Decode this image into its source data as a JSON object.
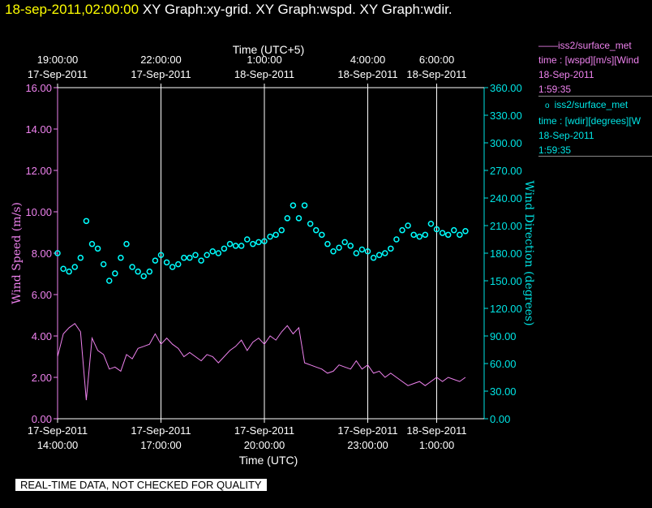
{
  "title": {
    "timestamp": "18-sep-2011,02:00:00",
    "graphs": "XY Graph:xy-grid.  XY Graph:wspd.  XY Graph:wdir."
  },
  "legend": [
    {
      "marker": "——",
      "name": "iss2/surface_met",
      "line2": "time : [wspd][m/s][Wind",
      "date": "18-Sep-2011",
      "time": "1:59:35"
    },
    {
      "marker": "o",
      "name": "iss2/surface_met",
      "line2": "time : [wdir][degrees][W",
      "date": "18-Sep-2011",
      "time": "1:59:35"
    }
  ],
  "qc_banner": "REAL-TIME DATA, NOT CHECKED FOR QUALITY",
  "colors": {
    "wspd": "#ee82ee",
    "wdir": "#00ffff",
    "grid": "#ffffff",
    "left_axis": "#ee82ee",
    "right_axis": "#00e5e5"
  },
  "chart_data": {
    "type": "scatter",
    "x_bottom": {
      "label": "Time (UTC)",
      "range": [
        "17-Sep-2011 14:00",
        "18-Sep-2011 01:53"
      ],
      "ticks": [
        {
          "time": "17-Sep-2011 14:00",
          "date": "17-Sep-2011",
          "clock": "14:00:00"
        },
        {
          "time": "17-Sep-2011 17:00",
          "date": "17-Sep-2011",
          "clock": "17:00:00"
        },
        {
          "time": "17-Sep-2011 20:00",
          "date": "17-Sep-2011",
          "clock": "20:00:00"
        },
        {
          "time": "17-Sep-2011 23:00",
          "date": "17-Sep-2011",
          "clock": "23:00:00"
        },
        {
          "time": "18-Sep-2011 01:00",
          "date": "18-Sep-2011",
          "clock": "1:00:00"
        }
      ]
    },
    "x_top": {
      "label": "Time (UTC+5)",
      "ticks": [
        {
          "time": "17-Sep-2011 14:00",
          "date": "17-Sep-2011",
          "clock": "19:00:00"
        },
        {
          "time": "17-Sep-2011 17:00",
          "date": "17-Sep-2011",
          "clock": "22:00:00"
        },
        {
          "time": "17-Sep-2011 20:00",
          "date": "18-Sep-2011",
          "clock": "1:00:00"
        },
        {
          "time": "17-Sep-2011 23:00",
          "date": "18-Sep-2011",
          "clock": "4:00:00"
        },
        {
          "time": "18-Sep-2011 01:00",
          "date": "18-Sep-2011",
          "clock": "6:00:00"
        }
      ]
    },
    "y_left": {
      "label": "Wind Speed (m/s)",
      "ylim": [
        0,
        16
      ],
      "ticks": [
        "0.00",
        "2.00",
        "4.00",
        "6.00",
        "8.00",
        "10.00",
        "12.00",
        "14.00",
        "16.00"
      ]
    },
    "y_right": {
      "label": "Wind Direction (degrees)",
      "ylim": [
        0,
        360
      ],
      "ticks": [
        "0.00",
        "30.00",
        "60.00",
        "90.00",
        "120.00",
        "150.00",
        "180.00",
        "210.00",
        "240.00",
        "270.00",
        "300.00",
        "330.00",
        "360.00"
      ]
    },
    "grid": "vertical lines at bottom ticks",
    "legend_position": "right",
    "series": [
      {
        "type": "line",
        "axis": "left",
        "x": [
          "17-Sep-2011 14:00",
          "17-Sep-2011 14:10",
          "17-Sep-2011 14:20",
          "17-Sep-2011 14:30",
          "17-Sep-2011 14:40",
          "17-Sep-2011 14:50",
          "17-Sep-2011 15:00",
          "17-Sep-2011 15:10",
          "17-Sep-2011 15:20",
          "17-Sep-2011 15:30",
          "17-Sep-2011 15:40",
          "17-Sep-2011 15:50",
          "17-Sep-2011 16:00",
          "17-Sep-2011 16:10",
          "17-Sep-2011 16:20",
          "17-Sep-2011 16:30",
          "17-Sep-2011 16:40",
          "17-Sep-2011 16:50",
          "17-Sep-2011 17:00",
          "17-Sep-2011 17:10",
          "17-Sep-2011 17:20",
          "17-Sep-2011 17:30",
          "17-Sep-2011 17:40",
          "17-Sep-2011 17:50",
          "17-Sep-2011 18:00",
          "17-Sep-2011 18:10",
          "17-Sep-2011 18:20",
          "17-Sep-2011 18:30",
          "17-Sep-2011 18:40",
          "17-Sep-2011 18:50",
          "17-Sep-2011 19:00",
          "17-Sep-2011 19:10",
          "17-Sep-2011 19:20",
          "17-Sep-2011 19:30",
          "17-Sep-2011 19:40",
          "17-Sep-2011 19:50",
          "17-Sep-2011 20:00",
          "17-Sep-2011 20:10",
          "17-Sep-2011 20:20",
          "17-Sep-2011 20:30",
          "17-Sep-2011 20:40",
          "17-Sep-2011 20:50",
          "17-Sep-2011 21:00",
          "17-Sep-2011 21:10",
          "17-Sep-2011 21:20",
          "17-Sep-2011 21:30",
          "17-Sep-2011 21:40",
          "17-Sep-2011 21:50",
          "17-Sep-2011 22:00",
          "17-Sep-2011 22:10",
          "17-Sep-2011 22:20",
          "17-Sep-2011 22:30",
          "17-Sep-2011 22:40",
          "17-Sep-2011 22:50",
          "17-Sep-2011 23:00",
          "17-Sep-2011 23:10",
          "17-Sep-2011 23:20",
          "17-Sep-2011 23:30",
          "17-Sep-2011 23:40",
          "17-Sep-2011 23:50",
          "18-Sep-2011 00:00",
          "18-Sep-2011 00:10",
          "18-Sep-2011 00:20",
          "18-Sep-2011 00:30",
          "18-Sep-2011 00:40",
          "18-Sep-2011 00:50",
          "18-Sep-2011 01:00",
          "18-Sep-2011 01:10",
          "18-Sep-2011 01:20",
          "18-Sep-2011 01:30",
          "18-Sep-2011 01:40",
          "18-Sep-2011 01:50"
        ],
        "values": [
          3.0,
          4.1,
          4.4,
          4.6,
          4.2,
          0.9,
          3.9,
          3.3,
          3.1,
          2.4,
          2.5,
          2.3,
          3.1,
          2.9,
          3.4,
          3.5,
          3.6,
          4.1,
          3.6,
          3.9,
          3.6,
          3.4,
          3.0,
          3.2,
          3.0,
          2.8,
          3.1,
          3.0,
          2.7,
          3.0,
          3.3,
          3.5,
          3.8,
          3.3,
          3.7,
          3.9,
          3.6,
          4.0,
          3.8,
          4.2,
          4.5,
          4.1,
          4.4,
          2.7,
          2.6,
          2.5,
          2.4,
          2.2,
          2.3,
          2.6,
          2.5,
          2.4,
          2.8,
          2.4,
          2.6,
          2.2,
          2.3,
          2.0,
          2.2,
          2.0,
          1.8,
          1.6,
          1.7,
          1.8,
          1.6,
          1.8,
          2.0,
          1.8,
          2.0,
          1.9,
          1.8,
          2.0
        ]
      },
      {
        "type": "scatter",
        "axis": "right",
        "x": [
          "17-Sep-2011 14:00",
          "17-Sep-2011 14:10",
          "17-Sep-2011 14:20",
          "17-Sep-2011 14:30",
          "17-Sep-2011 14:40",
          "17-Sep-2011 14:50",
          "17-Sep-2011 15:00",
          "17-Sep-2011 15:10",
          "17-Sep-2011 15:20",
          "17-Sep-2011 15:30",
          "17-Sep-2011 15:40",
          "17-Sep-2011 15:50",
          "17-Sep-2011 16:00",
          "17-Sep-2011 16:10",
          "17-Sep-2011 16:20",
          "17-Sep-2011 16:30",
          "17-Sep-2011 16:40",
          "17-Sep-2011 16:50",
          "17-Sep-2011 17:00",
          "17-Sep-2011 17:10",
          "17-Sep-2011 17:20",
          "17-Sep-2011 17:30",
          "17-Sep-2011 17:40",
          "17-Sep-2011 17:50",
          "17-Sep-2011 18:00",
          "17-Sep-2011 18:10",
          "17-Sep-2011 18:20",
          "17-Sep-2011 18:30",
          "17-Sep-2011 18:40",
          "17-Sep-2011 18:50",
          "17-Sep-2011 19:00",
          "17-Sep-2011 19:10",
          "17-Sep-2011 19:20",
          "17-Sep-2011 19:30",
          "17-Sep-2011 19:40",
          "17-Sep-2011 19:50",
          "17-Sep-2011 20:00",
          "17-Sep-2011 20:10",
          "17-Sep-2011 20:20",
          "17-Sep-2011 20:30",
          "17-Sep-2011 20:40",
          "17-Sep-2011 20:50",
          "17-Sep-2011 21:00",
          "17-Sep-2011 21:10",
          "17-Sep-2011 21:20",
          "17-Sep-2011 21:30",
          "17-Sep-2011 21:40",
          "17-Sep-2011 21:50",
          "17-Sep-2011 22:00",
          "17-Sep-2011 22:10",
          "17-Sep-2011 22:20",
          "17-Sep-2011 22:30",
          "17-Sep-2011 22:40",
          "17-Sep-2011 22:50",
          "17-Sep-2011 23:00",
          "17-Sep-2011 23:10",
          "17-Sep-2011 23:20",
          "17-Sep-2011 23:30",
          "17-Sep-2011 23:40",
          "17-Sep-2011 23:50",
          "18-Sep-2011 00:00",
          "18-Sep-2011 00:10",
          "18-Sep-2011 00:20",
          "18-Sep-2011 00:30",
          "18-Sep-2011 00:40",
          "18-Sep-2011 00:50",
          "18-Sep-2011 01:00",
          "18-Sep-2011 01:10",
          "18-Sep-2011 01:20",
          "18-Sep-2011 01:30",
          "18-Sep-2011 01:40",
          "18-Sep-2011 01:50"
        ],
        "values": [
          180,
          163,
          160,
          165,
          175,
          215,
          190,
          185,
          168,
          150,
          158,
          175,
          190,
          165,
          160,
          155,
          160,
          172,
          178,
          170,
          165,
          168,
          175,
          175,
          178,
          172,
          178,
          182,
          180,
          185,
          190,
          188,
          188,
          195,
          190,
          192,
          193,
          198,
          200,
          205,
          218,
          232,
          218,
          232,
          212,
          205,
          200,
          190,
          182,
          186,
          192,
          188,
          180,
          184,
          182,
          175,
          178,
          180,
          185,
          195,
          205,
          210,
          200,
          198,
          200,
          212,
          206,
          202,
          200,
          205,
          200,
          204
        ]
      }
    ]
  }
}
